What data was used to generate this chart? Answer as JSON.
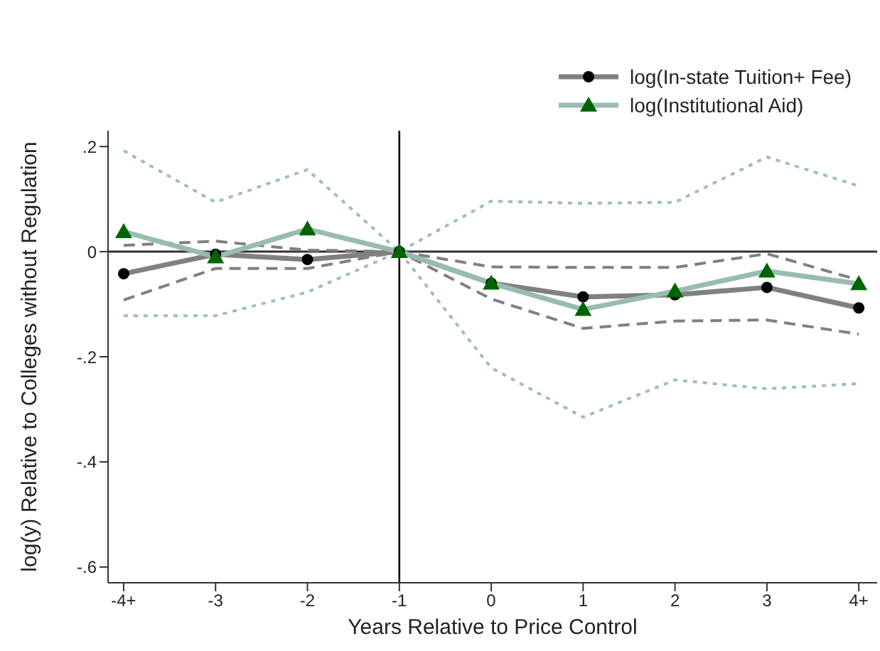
{
  "chart_data": {
    "type": "line",
    "xlabel": "Years Relative to Price Control",
    "ylabel": "log(y) Relative to Colleges without Regulation",
    "categories": [
      "-4+",
      "-3",
      "-2",
      "-1",
      "0",
      "1",
      "2",
      "3",
      "4+"
    ],
    "ylim": [
      -0.63,
      0.23
    ],
    "yticks": [
      {
        "value": 0.2,
        "label": ".2"
      },
      0,
      {
        "value": -0.2,
        "label": "-.2"
      },
      {
        "value": -0.4,
        "label": "-.4"
      },
      {
        "value": -0.6,
        "label": "-.6"
      }
    ],
    "grid": false,
    "legend": "top right",
    "ref_lines": [
      {
        "axis": "y",
        "value": 0,
        "color": "#333333"
      },
      {
        "axis": "x",
        "value": "-1",
        "color": "#000000"
      }
    ],
    "series": [
      {
        "line_style": "dotted",
        "marker": "none",
        "color": "#9cc0b4",
        "values": [
          0.192,
          0.094,
          0.156,
          0,
          0.096,
          0.092,
          0.094,
          0.18,
          0.125
        ]
      },
      {
        "line_style": "dotted",
        "marker": "none",
        "color": "#9cc0b4",
        "values": [
          -0.122,
          -0.122,
          -0.077,
          0,
          -0.221,
          -0.315,
          -0.244,
          -0.261,
          -0.251
        ]
      },
      {
        "line_style": "dashed",
        "marker": "none",
        "color": "#808080",
        "values": [
          0.012,
          0.02,
          0.003,
          0,
          -0.029,
          -0.03,
          -0.03,
          -0.004,
          -0.054
        ]
      },
      {
        "line_style": "dashed",
        "marker": "none",
        "color": "#808080",
        "values": [
          -0.092,
          -0.032,
          -0.032,
          0,
          -0.09,
          -0.146,
          -0.132,
          -0.13,
          -0.157
        ]
      },
      {
        "name": "log(In-state Tuition+ Fee)",
        "line_style": "solid",
        "marker": "circle",
        "color": "#808080",
        "colors": [
          "#000000",
          "#000000",
          "#000000",
          "#000000",
          "#000000",
          "#000000",
          "#000000",
          "#000000",
          "#000000"
        ],
        "values": [
          -0.042,
          -0.005,
          -0.015,
          0,
          -0.06,
          -0.086,
          -0.082,
          -0.068,
          -0.107
        ]
      },
      {
        "name": "log(Institutional Aid)",
        "line_style": "solid",
        "marker": "triangle",
        "color": "#98bcb0",
        "colors": [
          "#006400",
          "#006400",
          "#006400",
          "#006400",
          "#006400",
          "#006400",
          "#006400",
          "#006400",
          "#006400"
        ],
        "values": [
          0.038,
          -0.01,
          0.043,
          0,
          -0.06,
          -0.11,
          -0.075,
          -0.037,
          -0.061
        ]
      }
    ]
  }
}
